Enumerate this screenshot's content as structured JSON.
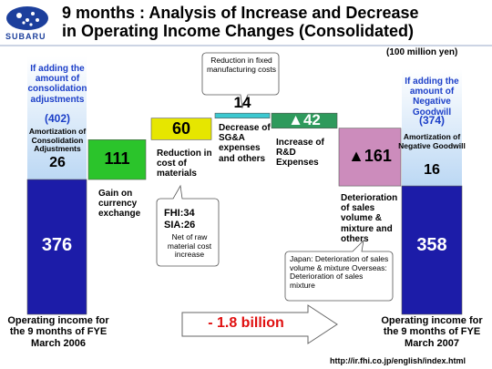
{
  "chart_data": {
    "type": "waterfall",
    "title": "9 months : Analysis of Increase and Decrease in Operating Income Changes (Consolidated)",
    "unit": "(100 million yen)",
    "categories": [
      "Operating income for the 9 months of FYE March 2006",
      "Gain on currency exchange",
      "Reduction in cost of materials",
      "Decrease of SG&A expenses and others",
      "Increase of R&D Expenses",
      "Deterioration of sales volume & mixture and others",
      "Operating income for the 9 months of FYE March 2007"
    ],
    "values": [
      376,
      111,
      60,
      14,
      -42,
      -161,
      358
    ],
    "value_labels": [
      "376",
      "111",
      "60",
      "14",
      "▲42",
      "▲161",
      "358"
    ],
    "colors": [
      "#1c1ca8",
      "#2bc42b",
      "#e6e600",
      "#3cc8d0",
      "#2e9a5c",
      "#cc8cbc",
      "#1c1ca8"
    ],
    "annotations": {
      "left_note": "If adding the amount of consolidation adjustments",
      "left_total": "(402)",
      "left_amort_label": "Amortization of Consolidation Adjustments",
      "left_amort": "26",
      "right_note": "If adding the amount of Negative Goodwill",
      "right_total": "(374)",
      "right_amort_label": "Amortization of Negative Goodwill",
      "right_amort": "16",
      "fixed_costs": "Reduction in fixed manufacturing costs",
      "materials_lines": [
        "FHI:34",
        "SIA:26"
      ],
      "materials_note": "Net of raw material cost increase",
      "sales_note": "Japan: Deterioration of sales volume & mixture Overseas: Deterioration of sales mixture",
      "change": "- 1.8 billion"
    }
  },
  "logo": "SUBARU",
  "footer": "http://ir.fhi.co.jp/english/index.html"
}
